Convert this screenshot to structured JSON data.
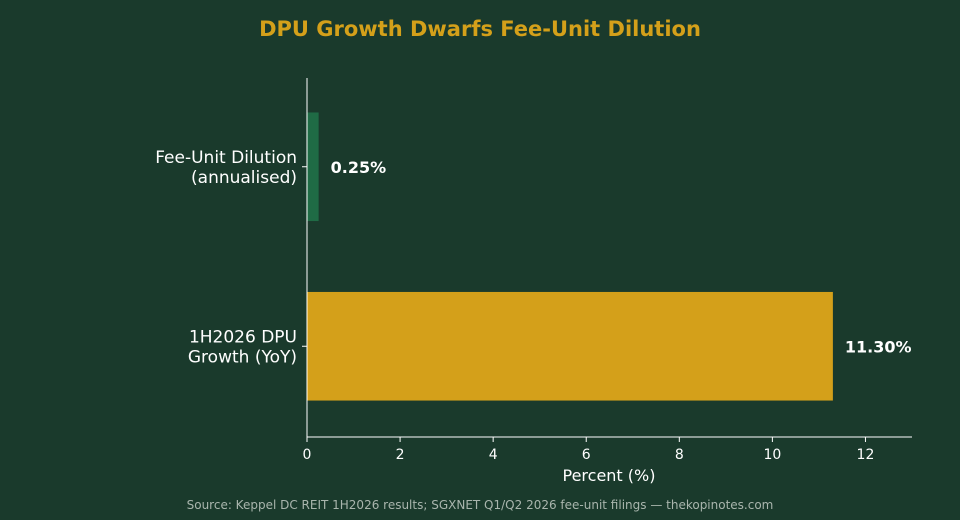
{
  "chart_data": {
    "type": "bar",
    "orientation": "horizontal",
    "title": "DPU Growth Dwarfs Fee-Unit Dilution",
    "xlabel": "Percent (%)",
    "ylabel": "",
    "xlim": [
      0,
      13
    ],
    "x_ticks": [
      0,
      2,
      4,
      6,
      8,
      10,
      12
    ],
    "grid": false,
    "categories": [
      {
        "lines": [
          "Fee-Unit Dilution",
          "(annualised)"
        ],
        "value": 0.25,
        "label": "0.25%",
        "color": "#1f6b45"
      },
      {
        "lines": [
          "1H2026 DPU",
          "Growth (YoY)"
        ],
        "value": 11.3,
        "label": "11.30%",
        "color": "#d4a01a"
      }
    ],
    "source": "Source: Keppel DC REIT 1H2026 results; SGXNET Q1/Q2 2026 fee-unit filings — thekopinotes.com"
  }
}
